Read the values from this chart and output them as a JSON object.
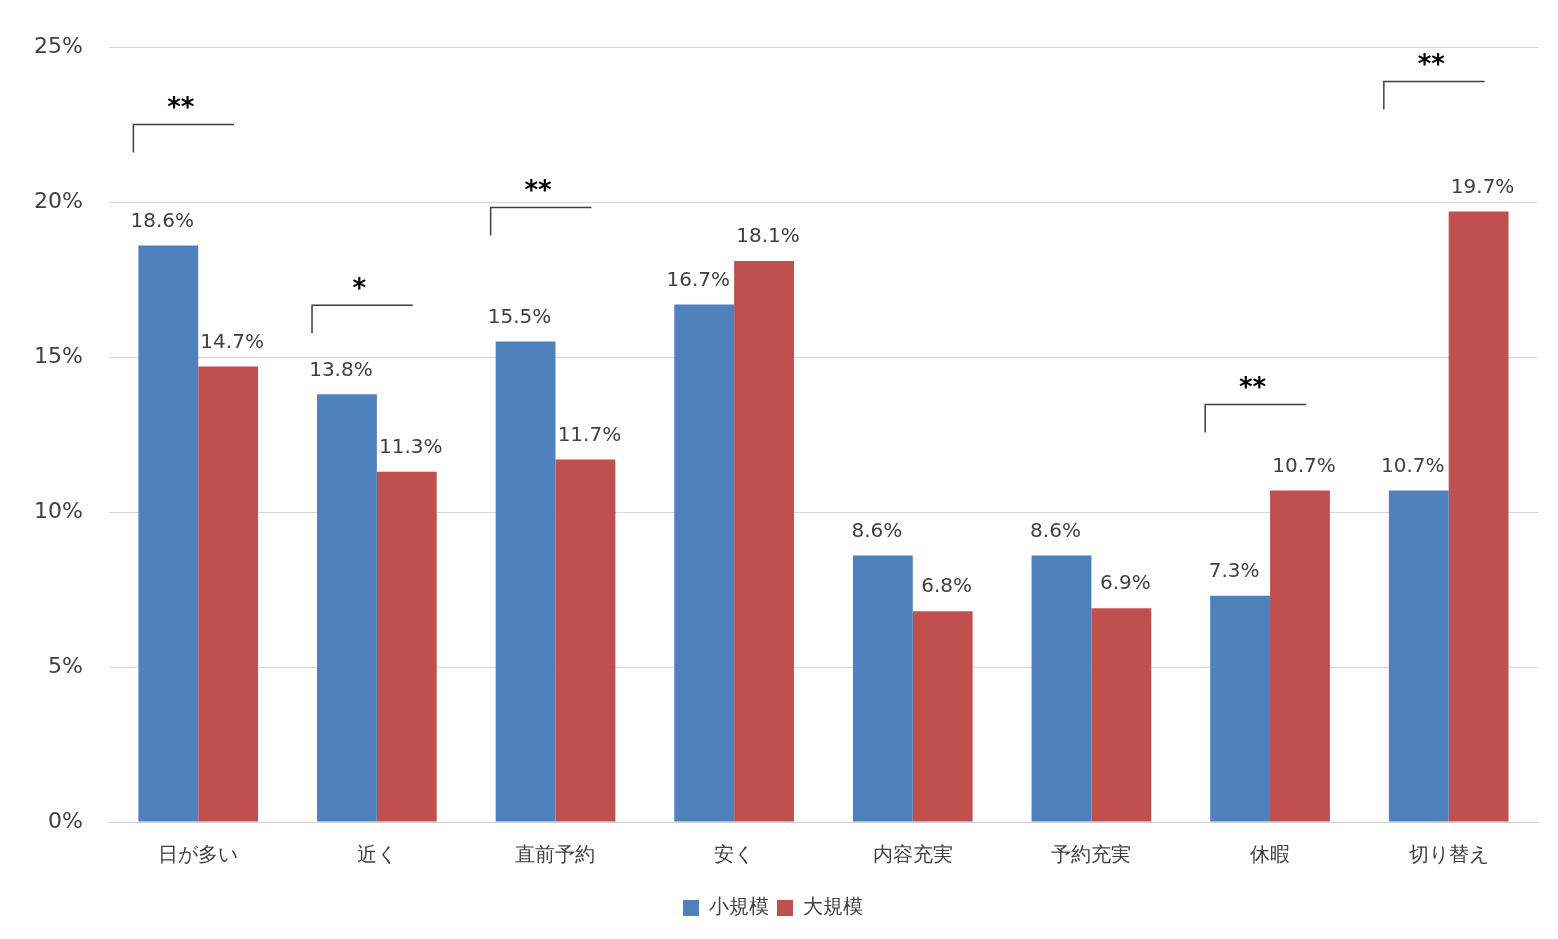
{
  "chart_data": {
    "type": "bar",
    "categories": [
      "日が多い",
      "近く",
      "直前予約",
      "安く",
      "内容充実",
      "予約充実",
      "休暇",
      "切り替え"
    ],
    "series": [
      {
        "name": "小規模",
        "color": "#4f81bd",
        "values": [
          18.6,
          13.8,
          15.5,
          16.7,
          8.6,
          8.6,
          7.3,
          10.7
        ],
        "value_labels": [
          "18.6%",
          "13.8%",
          "15.5%",
          "16.7%",
          "8.6%",
          "8.6%",
          "7.3%",
          "10.7%"
        ]
      },
      {
        "name": "大規模",
        "color": "#c0504d",
        "values": [
          14.7,
          11.3,
          11.7,
          18.1,
          6.8,
          6.9,
          10.7,
          19.7
        ],
        "value_labels": [
          "14.7%",
          "11.3%",
          "11.7%",
          "18.1%",
          "6.8%",
          "6.9%",
          "10.7%",
          "19.7%"
        ]
      }
    ],
    "ylim": [
      0,
      25
    ],
    "yticks": [
      {
        "value": 0,
        "label": "0%"
      },
      {
        "value": 5,
        "label": "5%"
      },
      {
        "value": 10,
        "label": "10%"
      },
      {
        "value": 15,
        "label": "15%"
      },
      {
        "value": 20,
        "label": "20%"
      },
      {
        "value": 25,
        "label": "25%"
      }
    ],
    "grid": "y",
    "legend": "bottom",
    "annotations": [
      "**",
      "*",
      "**",
      "**",
      "**"
    ]
  }
}
